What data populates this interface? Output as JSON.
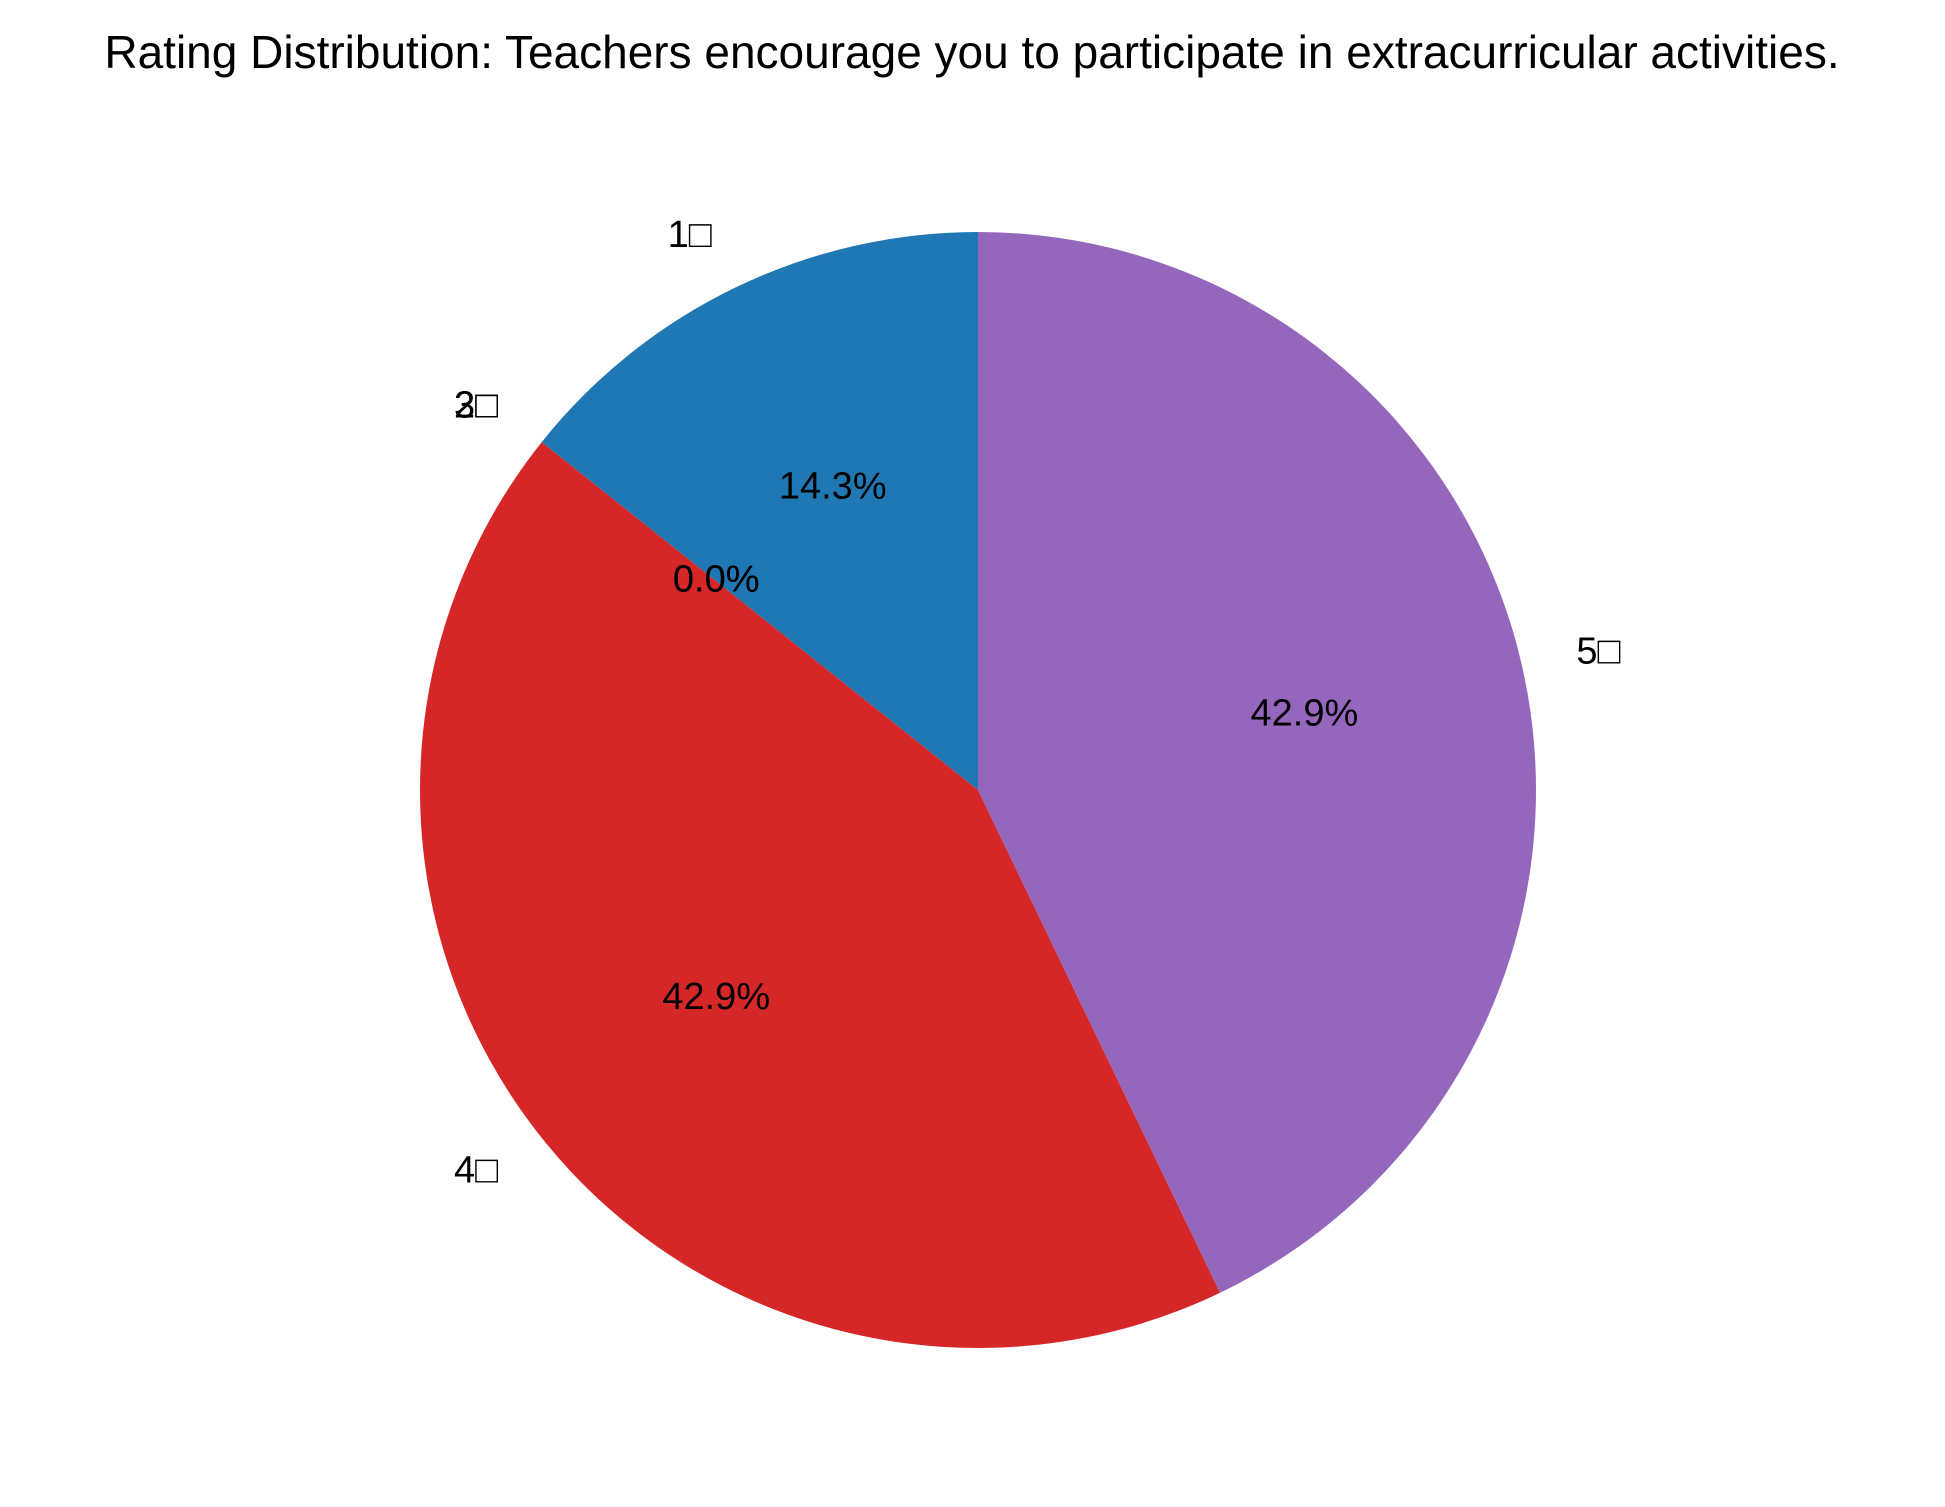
{
  "chart_data": {
    "type": "pie",
    "title": "Rating Distribution: Teachers encourage you to participate in extracurricular activities.",
    "categories": [
      "1□",
      "2□",
      "3□",
      "4□",
      "5□"
    ],
    "values": [
      14.3,
      0.0,
      0.0,
      42.9,
      42.9
    ],
    "percent_labels": [
      "14.3%",
      "0.0%",
      "0.0%",
      "42.9%",
      "42.9%"
    ],
    "colors": [
      "#1f77b4",
      "#ff7f0e",
      "#2ca02c",
      "#d62728",
      "#9467bd"
    ],
    "start_angle_deg": 90,
    "direction": "counterclockwise"
  }
}
